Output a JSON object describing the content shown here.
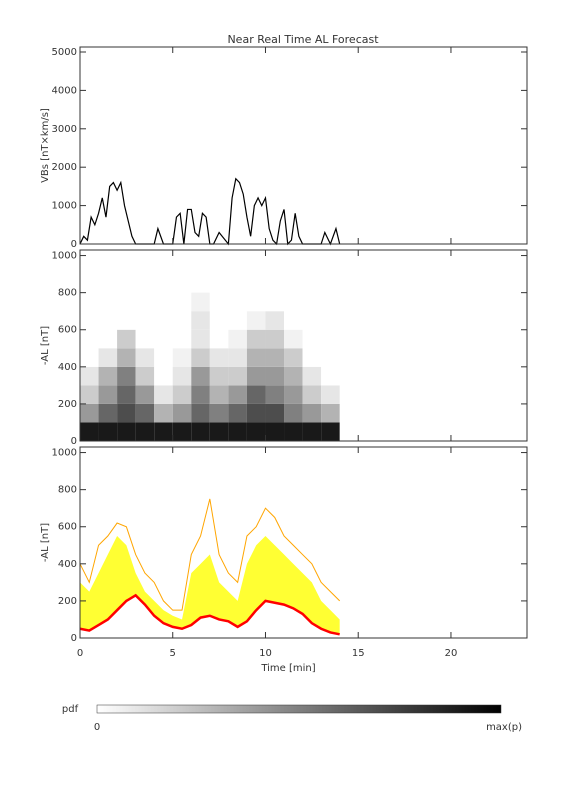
{
  "title": "Near Real Time AL Forecast",
  "chart_data": [
    {
      "type": "line",
      "ylabel": "VBs [nT×km/s]",
      "xlim": [
        0,
        24.1
      ],
      "xticks": [
        0,
        5,
        10,
        15,
        20
      ],
      "ylim": [
        0,
        5130
      ],
      "yticks": [
        0,
        1000,
        2000,
        3000,
        4000,
        5000
      ],
      "x": [
        0,
        0.2,
        0.4,
        0.6,
        0.8,
        1.0,
        1.2,
        1.4,
        1.6,
        1.8,
        2.0,
        2.2,
        2.4,
        2.6,
        2.8,
        3.0,
        3.5,
        4.0,
        4.2,
        4.5,
        5.0,
        5.2,
        5.4,
        5.6,
        5.8,
        6.0,
        6.2,
        6.4,
        6.6,
        6.8,
        7.0,
        7.2,
        7.5,
        8.0,
        8.2,
        8.4,
        8.6,
        8.8,
        9.0,
        9.2,
        9.4,
        9.6,
        9.8,
        10.0,
        10.2,
        10.4,
        10.6,
        10.8,
        11.0,
        11.2,
        11.4,
        11.6,
        11.8,
        12.0,
        12.5,
        13.0,
        13.2,
        13.5,
        13.8,
        14.0
      ],
      "series": [
        {
          "color": "#000000",
          "values": [
            0,
            200,
            100,
            700,
            500,
            800,
            1200,
            700,
            1500,
            1600,
            1400,
            1600,
            1000,
            600,
            200,
            0,
            0,
            0,
            400,
            0,
            0,
            700,
            800,
            0,
            900,
            900,
            300,
            200,
            800,
            700,
            0,
            0,
            300,
            0,
            1200,
            1700,
            1600,
            1300,
            700,
            200,
            1000,
            1200,
            1000,
            1200,
            400,
            100,
            0,
            600,
            900,
            0,
            100,
            800,
            200,
            0,
            0,
            0,
            300,
            0,
            400,
            0
          ]
        }
      ]
    },
    {
      "type": "heatmap",
      "ylabel": "-AL [nT]",
      "xlim": [
        0,
        24.1
      ],
      "xticks": [
        0,
        5,
        10,
        15,
        20
      ],
      "ylim": [
        0,
        1030
      ],
      "yticks": [
        0,
        200,
        400,
        600,
        800,
        1000
      ],
      "xbins": [
        0,
        1,
        2,
        3,
        4,
        5,
        6,
        7,
        8,
        9,
        10,
        11,
        12,
        13,
        14
      ],
      "ybins": [
        0,
        100,
        200,
        300,
        400,
        500,
        600,
        700,
        800
      ],
      "values": [
        [
          0.9,
          0.4,
          0.2,
          0.1,
          0,
          0,
          0,
          0
        ],
        [
          0.9,
          0.6,
          0.4,
          0.3,
          0.1,
          0,
          0,
          0
        ],
        [
          0.9,
          0.7,
          0.6,
          0.5,
          0.3,
          0.2,
          0,
          0
        ],
        [
          0.9,
          0.6,
          0.4,
          0.2,
          0.1,
          0,
          0,
          0
        ],
        [
          0.9,
          0.3,
          0.1,
          0,
          0,
          0,
          0,
          0
        ],
        [
          0.9,
          0.4,
          0.2,
          0.1,
          0.05,
          0,
          0,
          0
        ],
        [
          0.9,
          0.6,
          0.5,
          0.4,
          0.2,
          0.1,
          0.1,
          0.05
        ],
        [
          0.9,
          0.5,
          0.3,
          0.2,
          0.1,
          0,
          0,
          0
        ],
        [
          0.9,
          0.6,
          0.4,
          0.2,
          0.1,
          0.05,
          0,
          0
        ],
        [
          0.9,
          0.7,
          0.6,
          0.4,
          0.3,
          0.2,
          0.05,
          0
        ],
        [
          0.9,
          0.7,
          0.5,
          0.4,
          0.3,
          0.2,
          0.1,
          0
        ],
        [
          0.9,
          0.5,
          0.4,
          0.3,
          0.2,
          0.05,
          0,
          0
        ],
        [
          0.9,
          0.4,
          0.2,
          0.1,
          0,
          0,
          0,
          0
        ],
        [
          0.9,
          0.3,
          0.1,
          0,
          0,
          0,
          0,
          0
        ]
      ],
      "colorbar": {
        "label": "pdf",
        "min_label": "0",
        "max_label": "max(p)"
      }
    },
    {
      "type": "band",
      "ylabel": "-AL [nT]",
      "xlabel": "Time [min]",
      "xlim": [
        0,
        24.1
      ],
      "xticks": [
        0,
        5,
        10,
        15,
        20
      ],
      "ylim": [
        0,
        1030
      ],
      "yticks": [
        0,
        200,
        400,
        600,
        800,
        1000
      ],
      "x": [
        0,
        0.5,
        1,
        1.5,
        2,
        2.5,
        3,
        3.5,
        4,
        4.5,
        5,
        5.5,
        6,
        6.5,
        7,
        7.5,
        8,
        8.5,
        9,
        9.5,
        10,
        10.5,
        11,
        11.5,
        12,
        12.5,
        13,
        13.5,
        14
      ],
      "series": [
        {
          "color": "#ffa500",
          "values": [
            400,
            300,
            500,
            550,
            620,
            600,
            450,
            350,
            300,
            200,
            150,
            150,
            450,
            550,
            750,
            450,
            350,
            300,
            550,
            600,
            700,
            650,
            550,
            500,
            450,
            400,
            300,
            250,
            200
          ]
        },
        {
          "color": "#ffff33",
          "values": [
            300,
            250,
            350,
            450,
            550,
            500,
            350,
            250,
            200,
            150,
            120,
            100,
            350,
            400,
            450,
            300,
            250,
            200,
            400,
            500,
            550,
            500,
            450,
            400,
            350,
            300,
            200,
            150,
            100
          ]
        },
        {
          "color": "#ff0000",
          "values": [
            50,
            40,
            70,
            100,
            150,
            200,
            230,
            180,
            120,
            80,
            60,
            50,
            70,
            110,
            120,
            100,
            90,
            60,
            90,
            150,
            200,
            190,
            180,
            160,
            130,
            80,
            50,
            30,
            20
          ]
        }
      ]
    }
  ]
}
